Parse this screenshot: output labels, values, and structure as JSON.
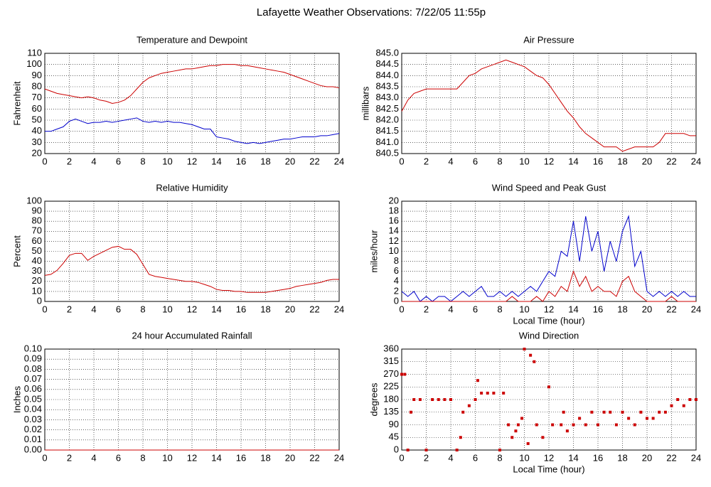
{
  "title": "Lafayette Weather Observations: 7/22/05 11:55p",
  "chart_data": [
    {
      "type": "line",
      "title": "Temperature and Dewpoint",
      "ylabel": "Fahrenheit",
      "x": [
        0,
        0.5,
        1,
        1.5,
        2,
        2.5,
        3,
        3.5,
        4,
        4.5,
        5,
        5.5,
        6,
        6.5,
        7,
        7.5,
        8,
        8.5,
        9,
        9.5,
        10,
        10.5,
        11,
        11.5,
        12,
        12.5,
        13,
        13.5,
        14,
        14.5,
        15,
        15.5,
        16,
        16.5,
        17,
        17.5,
        18,
        18.5,
        19,
        19.5,
        20,
        20.5,
        21,
        21.5,
        22,
        22.5,
        23,
        23.5,
        24
      ],
      "series": [
        {
          "color": "#cc0000",
          "values": [
            78,
            76,
            74,
            73,
            72,
            71,
            70,
            71,
            70,
            68,
            67,
            65,
            66,
            68,
            72,
            78,
            84,
            88,
            90,
            92,
            93,
            94,
            95,
            96,
            96,
            97,
            98,
            99,
            99,
            100,
            100,
            100,
            99,
            99,
            98,
            97,
            96,
            95,
            94,
            93,
            91,
            89,
            87,
            85,
            83,
            81,
            80,
            80,
            79
          ]
        },
        {
          "color": "#0000cc",
          "values": [
            40,
            40,
            42,
            44,
            49,
            51,
            49,
            47,
            48,
            48,
            49,
            48,
            49,
            50,
            51,
            52,
            49,
            48,
            49,
            48,
            49,
            48,
            48,
            47,
            46,
            44,
            42,
            42,
            35,
            34,
            33,
            31,
            30,
            29,
            30,
            29,
            30,
            31,
            32,
            33,
            33,
            34,
            35,
            35,
            35,
            36,
            36,
            37,
            38
          ]
        }
      ],
      "xlim": [
        0,
        24
      ],
      "xticks": [
        0,
        2,
        4,
        6,
        8,
        10,
        12,
        14,
        16,
        18,
        20,
        22,
        24
      ],
      "ylim": [
        20,
        110
      ],
      "yticks": [
        20,
        30,
        40,
        50,
        60,
        70,
        80,
        90,
        100,
        110
      ],
      "grid": true
    },
    {
      "type": "line",
      "title": "Air Pressure",
      "ylabel": "millibars",
      "x": [
        0,
        0.5,
        1,
        1.5,
        2,
        2.5,
        3,
        3.5,
        4,
        4.5,
        5,
        5.5,
        6,
        6.5,
        7,
        7.5,
        8,
        8.5,
        9,
        9.5,
        10,
        10.5,
        11,
        11.5,
        12,
        12.5,
        13,
        13.5,
        14,
        14.5,
        15,
        15.5,
        16,
        16.5,
        17,
        17.5,
        18,
        18.5,
        19,
        19.5,
        20,
        20.5,
        21,
        21.5,
        22,
        22.5,
        23,
        23.5,
        24
      ],
      "series": [
        {
          "color": "#cc0000",
          "values": [
            842.4,
            842.9,
            843.2,
            843.3,
            843.4,
            843.4,
            843.4,
            843.4,
            843.4,
            843.4,
            843.7,
            844.0,
            844.1,
            844.3,
            844.4,
            844.5,
            844.6,
            844.7,
            844.6,
            844.5,
            844.4,
            844.2,
            844.0,
            843.9,
            843.6,
            843.2,
            842.8,
            842.4,
            842.1,
            841.7,
            841.4,
            841.2,
            841.0,
            840.8,
            840.8,
            840.8,
            840.6,
            840.7,
            840.8,
            840.8,
            840.8,
            840.8,
            841.0,
            841.4,
            841.4,
            841.4,
            841.4,
            841.3,
            841.3
          ]
        }
      ],
      "xlim": [
        0,
        24
      ],
      "xticks": [
        0,
        2,
        4,
        6,
        8,
        10,
        12,
        14,
        16,
        18,
        20,
        22,
        24
      ],
      "ylim": [
        840.5,
        845
      ],
      "yticks": [
        840.5,
        {
          "value": 841,
          "label": "841.0"
        },
        841.5,
        {
          "value": 842,
          "label": "842.0"
        },
        842.5,
        {
          "value": 843,
          "label": "843.0"
        },
        843.5,
        {
          "value": 844,
          "label": "844.0"
        },
        844.5,
        {
          "value": 845,
          "label": "845.0"
        }
      ],
      "grid": true
    },
    {
      "type": "line",
      "title": "Relative Humidity",
      "ylabel": "Percent",
      "x": [
        0,
        0.5,
        1,
        1.5,
        2,
        2.5,
        3,
        3.5,
        4,
        4.5,
        5,
        5.5,
        6,
        6.5,
        7,
        7.5,
        8,
        8.5,
        9,
        9.5,
        10,
        10.5,
        11,
        11.5,
        12,
        12.5,
        13,
        13.5,
        14,
        14.5,
        15,
        15.5,
        16,
        16.5,
        17,
        17.5,
        18,
        18.5,
        19,
        19.5,
        20,
        20.5,
        21,
        21.5,
        22,
        22.5,
        23,
        23.5,
        24
      ],
      "series": [
        {
          "color": "#cc0000",
          "values": [
            26,
            27,
            31,
            38,
            46,
            48,
            48,
            41,
            45,
            48,
            51,
            54,
            55,
            52,
            52,
            47,
            37,
            27,
            25,
            24,
            23,
            22,
            21,
            20,
            20,
            19,
            17,
            15,
            12,
            11,
            11,
            10,
            10,
            9,
            9,
            9,
            9,
            10,
            11,
            12,
            13,
            15,
            16,
            17,
            18,
            19,
            21,
            22,
            22
          ]
        }
      ],
      "xlim": [
        0,
        24
      ],
      "xticks": [
        0,
        2,
        4,
        6,
        8,
        10,
        12,
        14,
        16,
        18,
        20,
        22,
        24
      ],
      "ylim": [
        0,
        100
      ],
      "yticks": [
        0,
        10,
        20,
        30,
        40,
        50,
        60,
        70,
        80,
        90,
        100
      ],
      "grid": true
    },
    {
      "type": "line",
      "title": "Wind Speed and Peak Gust",
      "ylabel": "miles/hour",
      "xlabel": "Local Time (hour)",
      "x": [
        0,
        0.5,
        1,
        1.5,
        2,
        2.5,
        3,
        3.5,
        4,
        4.5,
        5,
        5.5,
        6,
        6.5,
        7,
        7.5,
        8,
        8.5,
        9,
        9.5,
        10,
        10.5,
        11,
        11.5,
        12,
        12.5,
        13,
        13.5,
        14,
        14.5,
        15,
        15.5,
        16,
        16.5,
        17,
        17.5,
        18,
        18.5,
        19,
        19.5,
        20,
        20.5,
        21,
        21.5,
        22,
        22.5,
        23,
        23.5,
        24
      ],
      "series": [
        {
          "color": "#0000cc",
          "values": [
            2,
            1,
            2,
            0,
            1,
            0,
            1,
            1,
            0,
            1,
            2,
            1,
            2,
            3,
            1,
            1,
            2,
            1,
            2,
            1,
            2,
            3,
            2,
            4,
            6,
            5,
            10,
            9,
            16,
            8,
            17,
            10,
            14,
            6,
            12,
            8,
            14,
            17,
            7,
            10,
            2,
            1,
            2,
            1,
            2,
            1,
            2,
            1,
            1
          ]
        },
        {
          "color": "#cc0000",
          "values": [
            0,
            0,
            0,
            0,
            0,
            0,
            0,
            0,
            0,
            0,
            0,
            0,
            0,
            0,
            0,
            0,
            0,
            0,
            1,
            0,
            0,
            0,
            1,
            0,
            2,
            1,
            3,
            2,
            6,
            3,
            5,
            2,
            3,
            2,
            2,
            1,
            4,
            5,
            2,
            1,
            0,
            0,
            0,
            0,
            1,
            0,
            0,
            0,
            0
          ]
        }
      ],
      "xlim": [
        0,
        24
      ],
      "xticks": [
        0,
        2,
        4,
        6,
        8,
        10,
        12,
        14,
        16,
        18,
        20,
        22,
        24
      ],
      "ylim": [
        0,
        20
      ],
      "yticks": [
        0,
        2,
        4,
        6,
        8,
        10,
        12,
        14,
        16,
        18,
        20
      ],
      "grid": true
    },
    {
      "type": "line",
      "title": "24 hour Accumulated Rainfall",
      "ylabel": "Inches",
      "x": [
        0,
        24
      ],
      "series": [
        {
          "color": "#cc0000",
          "values": [
            0,
            0
          ]
        }
      ],
      "xlim": [
        0,
        24
      ],
      "xticks": [
        0,
        2,
        4,
        6,
        8,
        10,
        12,
        14,
        16,
        18,
        20,
        22,
        24
      ],
      "ylim": [
        0,
        0.1
      ],
      "yticks": [
        {
          "value": 0,
          "label": "0.00"
        },
        0.01,
        0.02,
        0.03,
        0.04,
        0.05,
        0.06,
        0.07,
        0.08,
        0.09,
        {
          "value": 0.1,
          "label": "0.10"
        }
      ],
      "grid": true
    },
    {
      "type": "scatter",
      "title": "Wind Direction",
      "ylabel": "degrees",
      "xlabel": "Local Time (hour)",
      "x": [
        0,
        0.25,
        0.5,
        0.75,
        1,
        1.5,
        2,
        2.5,
        3,
        3.5,
        4,
        4.5,
        4.8,
        5,
        5.5,
        6,
        6.2,
        6.5,
        7,
        7.5,
        8,
        8.3,
        8.7,
        9,
        9.3,
        9.5,
        9.8,
        10,
        10.3,
        10.5,
        10.8,
        11,
        11.5,
        12,
        12.3,
        13,
        13.2,
        13.5,
        14,
        14.5,
        15,
        15.5,
        16,
        16.5,
        17,
        17.5,
        18,
        18.5,
        19,
        19.5,
        20,
        20.5,
        21,
        21.5,
        22,
        22.5,
        23,
        23.5,
        24
      ],
      "series": [
        {
          "color": "#cc0000",
          "values": [
            270,
            270,
            0,
            135,
            180,
            180,
            0,
            180,
            180,
            180,
            180,
            0,
            45,
            135,
            158,
            180,
            248,
            203,
            203,
            203,
            0,
            203,
            90,
            45,
            68,
            90,
            113,
            360,
            23,
            338,
            315,
            90,
            45,
            225,
            90,
            90,
            135,
            68,
            90,
            113,
            90,
            135,
            90,
            135,
            135,
            90,
            135,
            113,
            90,
            135,
            113,
            113,
            135,
            135,
            158,
            180,
            158,
            180,
            180
          ]
        }
      ],
      "xlim": [
        0,
        24
      ],
      "xticks": [
        0,
        2,
        4,
        6,
        8,
        10,
        12,
        14,
        16,
        18,
        20,
        22,
        24
      ],
      "ylim": [
        0,
        360
      ],
      "yticks": [
        0,
        45,
        90,
        135,
        180,
        225,
        270,
        315,
        360
      ],
      "grid": true
    }
  ]
}
